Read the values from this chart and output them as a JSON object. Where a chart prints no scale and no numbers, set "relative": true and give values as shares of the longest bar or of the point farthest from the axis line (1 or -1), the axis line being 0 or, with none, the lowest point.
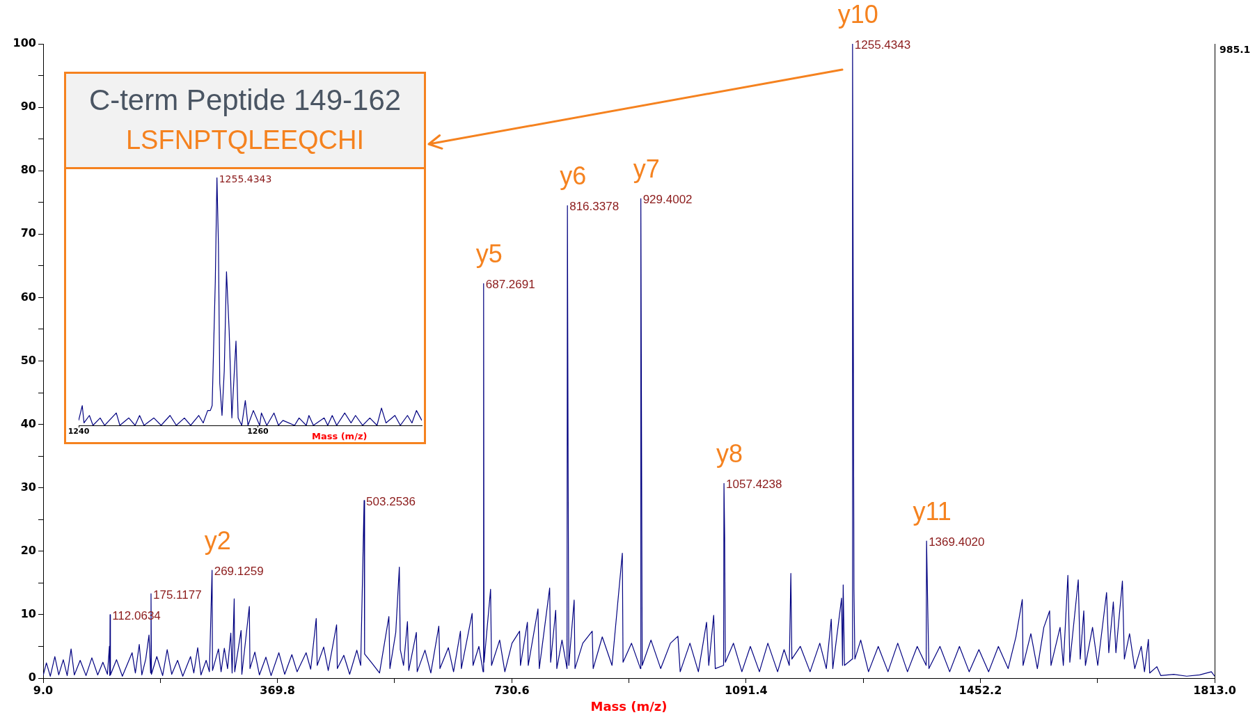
{
  "chart_data": [
    {
      "type": "line",
      "title": "C-term Peptide 149-162",
      "subtitle": "LSFNPTQLEEQCHI",
      "xlabel": "Mass (m/z)",
      "annotations": [
        {
          "text": "112.0634",
          "x": 112.0634,
          "y": 10
        },
        {
          "text": "175.1177",
          "x": 175.1177,
          "y": 13.3
        },
        {
          "text": "269.1259",
          "x": 269.1259,
          "y": 17
        },
        {
          "text": "503.2536",
          "x": 503.2536,
          "y": 28
        },
        {
          "text": "687.2691",
          "x": 687.2691,
          "y": 62.2
        },
        {
          "text": "816.3378",
          "x": 816.3378,
          "y": 74.5
        },
        {
          "text": "929.4002",
          "x": 929.4002,
          "y": 75.6
        },
        {
          "text": "1057.4238",
          "x": 1057.4238,
          "y": 30.7
        },
        {
          "text": "1255.4343",
          "x": 1255.4343,
          "y": 100
        },
        {
          "text": "1369.4020",
          "x": 1369.402,
          "y": 21.6
        },
        {
          "text": "y2",
          "x": 269.1259,
          "y": 17
        },
        {
          "text": "y5",
          "x": 687.2691,
          "y": 62.2
        },
        {
          "text": "y6",
          "x": 816.3378,
          "y": 74.5
        },
        {
          "text": "y7",
          "x": 929.4002,
          "y": 75.6
        },
        {
          "text": "y8",
          "x": 1057.4238,
          "y": 30.7
        },
        {
          "text": "y10",
          "x": 1255.4343,
          "y": 100
        },
        {
          "text": "y11",
          "x": 1369.402,
          "y": 21.6
        },
        "985.1"
      ],
      "x": [
        9,
        14,
        20,
        27,
        33,
        40,
        46,
        52,
        57,
        66,
        75,
        84,
        93,
        101,
        108,
        111,
        111.6,
        112.0634,
        112.6,
        122,
        131,
        146,
        151,
        157,
        161,
        167,
        172,
        174.5,
        175.1177,
        175.8,
        184,
        193,
        200,
        207,
        216,
        224,
        236,
        241,
        247,
        252,
        260,
        265,
        269.1259,
        269.8,
        279,
        283,
        288,
        293,
        298,
        300,
        303.2,
        304,
        313.8,
        315,
        326.5,
        327.5,
        335,
        342,
        352,
        360,
        372,
        381,
        392,
        400,
        414,
        421,
        429.5,
        431,
        441,
        448,
        460.9,
        462,
        472,
        481,
        492,
        498,
        503.2536,
        504,
        515,
        527,
        541.4,
        543,
        552,
        557.5,
        559,
        564,
        570,
        572,
        583.7,
        585,
        597,
        606,
        618.3,
        620,
        633,
        641,
        651.6,
        653,
        669.6,
        671,
        680,
        686.5,
        687.2691,
        688,
        698,
        699.5,
        712,
        720,
        731,
        742.7,
        744,
        754.7,
        756,
        771,
        773,
        789,
        790.5,
        798.3,
        800,
        808,
        815.7,
        816.3378,
        817.4,
        818.5,
        826.7,
        828,
        840,
        854.5,
        856,
        870,
        885,
        900.9,
        902,
        915,
        928.8,
        929.4002,
        930.3,
        931.5,
        945,
        960,
        975,
        986.5,
        990,
        1005,
        1018,
        1030.6,
        1034,
        1041.6,
        1044,
        1056.8,
        1057.4238,
        1058.5,
        1059.5,
        1072,
        1085,
        1098,
        1112,
        1125,
        1140,
        1150,
        1158,
        1160.4,
        1162,
        1175,
        1190,
        1205,
        1215,
        1222.6,
        1225,
        1238.5,
        1240,
        1241,
        1243,
        1254.8,
        1255.4343,
        1256.4,
        1257.6,
        1259,
        1268,
        1280,
        1295,
        1310,
        1325,
        1340,
        1355,
        1368.8,
        1369.402,
        1371.5,
        1373,
        1390,
        1405,
        1420,
        1435,
        1450,
        1465,
        1480,
        1495,
        1507,
        1516.8,
        1518,
        1530,
        1540,
        1550,
        1558.9,
        1561,
        1575,
        1580,
        1587,
        1590,
        1603,
        1606,
        1611.5,
        1614,
        1625,
        1633,
        1646.6,
        1650,
        1657,
        1661,
        1671,
        1674,
        1682,
        1690,
        1700,
        1705,
        1711,
        1713,
        1724,
        1730,
        1750,
        1770,
        1790,
        1808,
        1813
      ],
      "series": [
        {
          "color": "#000080",
          "values": [
            0.4,
            2.4,
            0.3,
            3.4,
            0.5,
            2.9,
            0.4,
            4.6,
            0.5,
            2.8,
            0.4,
            3.2,
            0.5,
            2.5,
            0.6,
            5,
            0.4,
            10,
            0.5,
            2.9,
            0.3,
            4,
            0.8,
            5.3,
            0.5,
            3,
            6.8,
            0.8,
            13.3,
            0.6,
            3.4,
            0.4,
            4.5,
            0.6,
            2.8,
            0.3,
            3.4,
            0.8,
            4.8,
            0.5,
            2.8,
            1,
            17,
            1.2,
            4.6,
            1,
            4.7,
            1.5,
            7.1,
            0.8,
            12.5,
            1,
            7.5,
            0.6,
            11.3,
            1.5,
            4.1,
            0.5,
            3.3,
            0.4,
            4,
            0.6,
            3.7,
            1,
            4,
            1.4,
            9.4,
            2,
            4.9,
            1.2,
            8.4,
            1.5,
            3.6,
            0.6,
            4.4,
            2,
            28,
            3.8,
            2.4,
            0.8,
            9.7,
            1.5,
            7.2,
            17.5,
            4.5,
            2,
            8.9,
            1.2,
            7.2,
            1,
            4.4,
            0.8,
            8.2,
            1.5,
            4.8,
            1,
            7.4,
            1.5,
            10.2,
            2,
            5,
            1,
            62.2,
            2.5,
            14,
            2,
            6,
            1,
            5.5,
            7.4,
            2,
            8.8,
            2,
            10.9,
            1.5,
            14.2,
            2.5,
            10.7,
            1.5,
            6,
            1.5,
            74.5,
            33.9,
            2,
            12.3,
            1.5,
            5.5,
            7.4,
            1.5,
            6.5,
            2,
            19.7,
            2.5,
            5.5,
            1.5,
            75.6,
            44.6,
            2,
            6,
            1.5,
            5.5,
            6.6,
            1,
            5.5,
            1,
            8.8,
            2,
            9.9,
            1.5,
            2,
            30.7,
            22.2,
            2.5,
            5.5,
            1,
            5,
            1,
            5.5,
            1,
            4.5,
            2,
            16.5,
            3,
            5,
            1,
            5.5,
            1.5,
            9.3,
            1.5,
            12.6,
            2,
            14.7,
            2,
            3,
            100,
            61.9,
            14,
            3,
            6,
            1,
            5,
            1,
            5.5,
            1,
            5,
            2,
            21.6,
            9.4,
            1.5,
            5,
            1,
            5,
            1,
            4.5,
            1,
            5,
            1.5,
            6.5,
            12.4,
            2,
            7,
            1.5,
            8,
            10.6,
            2,
            8,
            2,
            16.2,
            2.5,
            15.5,
            3,
            10.6,
            2,
            8,
            2,
            13.5,
            4,
            12,
            4,
            15.3,
            3,
            7,
            1.5,
            5,
            1,
            6.1,
            0.8,
            1.8,
            0.4,
            0.6,
            0.3,
            0.5,
            1,
            0.3
          ]
        }
      ],
      "xlim": [
        9,
        1813
      ],
      "xticks": [
        {
          "value": 9,
          "label": "9.0"
        },
        {
          "value": 189.4,
          "label": null
        },
        369.8,
        {
          "value": 550.2,
          "label": null
        },
        730.6,
        {
          "value": 911,
          "label": null
        },
        1091.4,
        {
          "value": 1271.8,
          "label": null
        },
        1452.2,
        {
          "value": 1632.6,
          "label": null
        },
        {
          "value": 1813,
          "label": "1813.0"
        }
      ],
      "ylim": [
        0,
        100
      ],
      "yticks": [
        0,
        {
          "value": 5,
          "label": null
        },
        10,
        {
          "value": 15,
          "label": null
        },
        20,
        {
          "value": 25,
          "label": null
        },
        30,
        {
          "value": 35,
          "label": null
        },
        40,
        {
          "value": 45,
          "label": null
        },
        50,
        {
          "value": 55,
          "label": null
        },
        60,
        {
          "value": 65,
          "label": null
        },
        70,
        {
          "value": 75,
          "label": null
        },
        80,
        {
          "value": 85,
          "label": null
        },
        90,
        {
          "value": 95,
          "label": null
        },
        100
      ]
    },
    {
      "type": "line",
      "xlabel": "Mass (m/z)",
      "relative": true,
      "annotations": [
        {
          "text": "1255.4343",
          "x": 1255.4343,
          "y": 1
        }
      ],
      "x": [
        1240,
        1240.4,
        1240.6,
        1241.2,
        1241.6,
        1242.4,
        1242.9,
        1244.2,
        1244.6,
        1245.6,
        1246.3,
        1246.8,
        1247.3,
        1248.4,
        1249.2,
        1250.2,
        1250.9,
        1251.8,
        1252.5,
        1253.4,
        1253.9,
        1254.4,
        1254.7,
        1254.9,
        1255.25,
        1255.4343,
        1255.6,
        1255.75,
        1256,
        1256.25,
        1256.5,
        1256.8,
        1257.1,
        1257.35,
        1257.56,
        1257.8,
        1258.2,
        1258.6,
        1258.9,
        1259.5,
        1260.2,
        1260.4,
        1261,
        1261.8,
        1262.3,
        1262.8,
        1264.1,
        1264.6,
        1265.4,
        1265.7,
        1266.2,
        1267.4,
        1267.8,
        1268.3,
        1268.8,
        1269.7,
        1270.4,
        1270.9,
        1271.7,
        1272.5,
        1273.3,
        1273.8,
        1274.3,
        1275.3,
        1275.9,
        1276.7,
        1277.2,
        1277.7,
        1278.3
      ],
      "series": [
        {
          "color": "#000080",
          "values": [
            0.02,
            0.08,
            0.01,
            0.04,
            0,
            0.03,
            0,
            0.05,
            0,
            0.03,
            0,
            0.04,
            0,
            0.03,
            0,
            0.04,
            0,
            0.03,
            0,
            0.04,
            0.01,
            0.06,
            0.06,
            0.08,
            0.58,
            1,
            0.73,
            0.17,
            0.04,
            0.22,
            0.62,
            0.38,
            0.03,
            0.2,
            0.34,
            0.03,
            0,
            0.1,
            0,
            0.06,
            0,
            0.05,
            0,
            0.05,
            0,
            0.02,
            0,
            0.03,
            0,
            0.04,
            0,
            0.03,
            0,
            0.04,
            0,
            0.05,
            0.01,
            0.04,
            0,
            0.03,
            0,
            0.07,
            0.01,
            0.04,
            0,
            0.04,
            0.01,
            0.06,
            0.02
          ]
        }
      ],
      "xlim": [
        1240,
        1278.3
      ],
      "xticks": [
        1240,
        1260
      ]
    }
  ]
}
